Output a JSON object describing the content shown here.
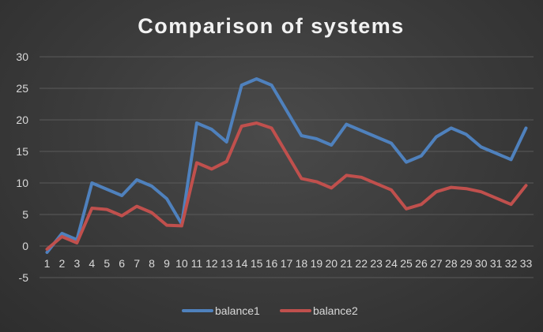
{
  "chart_data": {
    "type": "line",
    "title": "Comparison of systems",
    "xlabel": "",
    "ylabel": "",
    "ylim": [
      -5,
      30
    ],
    "yticks": [
      -5,
      0,
      5,
      10,
      15,
      20,
      25,
      30
    ],
    "grid": true,
    "legend_position": "bottom",
    "categories": [
      "1",
      "2",
      "3",
      "4",
      "5",
      "6",
      "7",
      "8",
      "9",
      "10",
      "11",
      "12",
      "13",
      "14",
      "15",
      "16",
      "17",
      "18",
      "19",
      "20",
      "21",
      "22",
      "23",
      "24",
      "25",
      "26",
      "27",
      "28",
      "29",
      "30",
      "31",
      "32",
      "33"
    ],
    "series": [
      {
        "name": "balance1",
        "color": "#4f81bd",
        "values": [
          -1,
          2,
          1,
          10,
          9,
          8,
          10.5,
          9.5,
          7.5,
          3.5,
          19.5,
          18.5,
          16.5,
          25.5,
          26.5,
          25.5,
          21.5,
          17.5,
          17,
          16,
          19.3,
          18.3,
          17.3,
          16.3,
          13.3,
          14.3,
          17.3,
          18.7,
          17.7,
          15.7,
          14.7,
          13.7,
          18.7
        ]
      },
      {
        "name": "balance2",
        "color": "#c0504d",
        "values": [
          -0.5,
          1.5,
          0.5,
          6,
          5.8,
          4.8,
          6.3,
          5.3,
          3.3,
          3.2,
          13.2,
          12.2,
          13.4,
          19,
          19.5,
          18.7,
          14.7,
          10.7,
          10.2,
          9.2,
          11.2,
          10.9,
          9.9,
          8.9,
          5.9,
          6.6,
          8.6,
          9.3,
          9.1,
          8.6,
          7.6,
          6.6,
          9.6
        ]
      }
    ]
  }
}
